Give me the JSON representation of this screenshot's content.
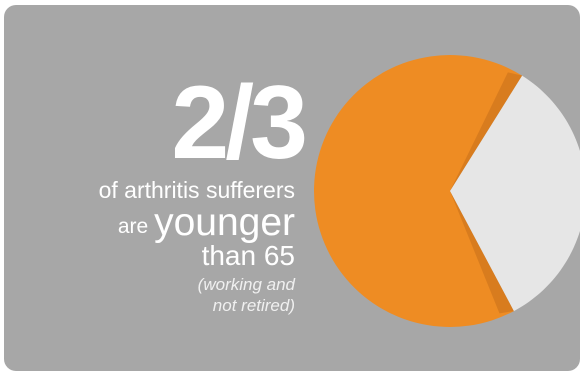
{
  "colors": {
    "panel": "#a7a7a7",
    "majority": "#ee8c23",
    "majority_shadow": "#c9711a",
    "minority": "#e6e6e6",
    "text": "#ffffff"
  },
  "headline": "2/3",
  "caption": {
    "line1": "of arthritis sufferers",
    "line2_small": "are",
    "line2_big": "younger",
    "line3": "than 65",
    "note_line1": "(working and",
    "note_line2": "not retired)"
  },
  "chart_data": {
    "type": "pie",
    "title": "",
    "slices": [
      {
        "label": "",
        "value": 0.6667,
        "color": "#ee8c23"
      },
      {
        "label": "",
        "value": 0.3333,
        "color": "#e6e6e6"
      }
    ]
  }
}
